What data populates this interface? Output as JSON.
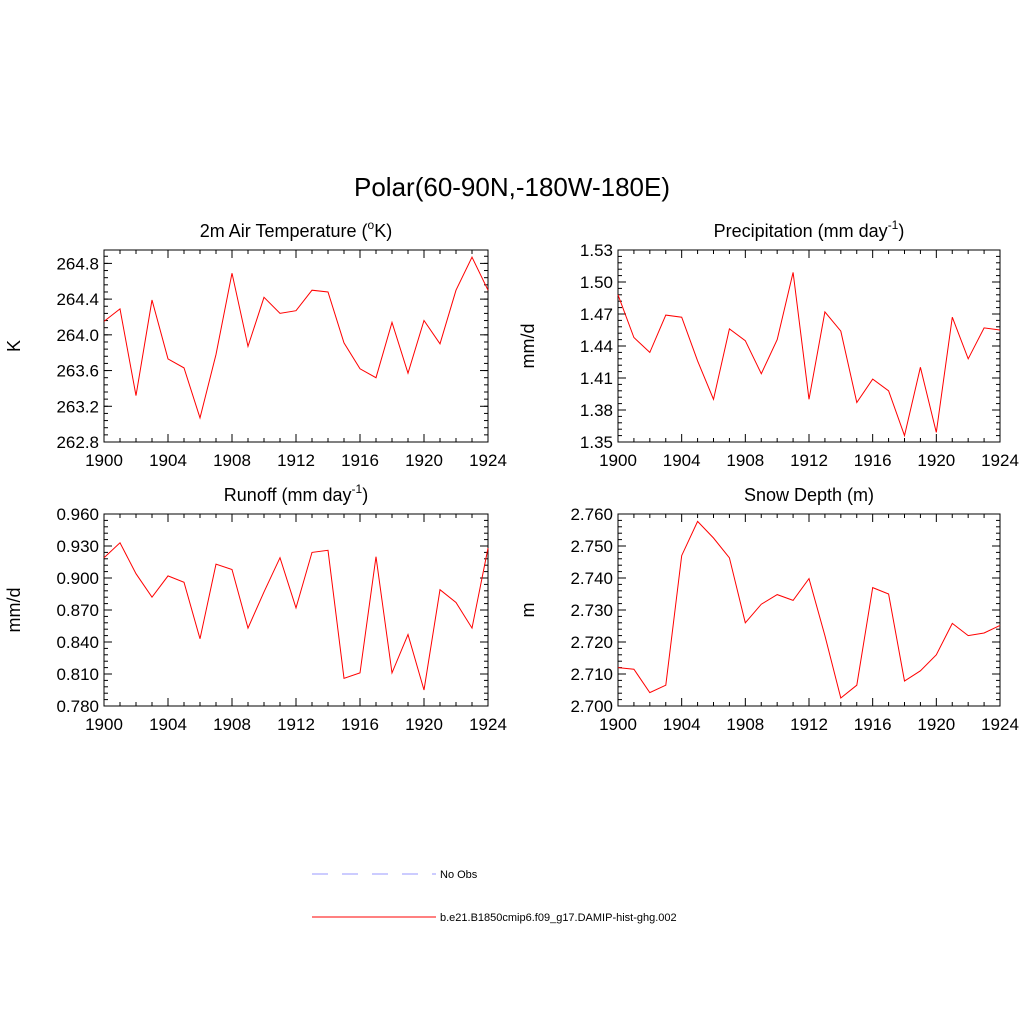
{
  "title": "Polar(60-90N,-180W-180E)",
  "colors": {
    "model_line": "#ff0000",
    "obs_line": "#9999ff",
    "axis": "#000000"
  },
  "legend": {
    "items": [
      {
        "label": "No Obs",
        "style": "dashed",
        "color": "#9999ff"
      },
      {
        "label": "b.e21.B1850cmip6.f09_g17.DAMIP-hist-ghg.002",
        "style": "solid",
        "color": "#ff0000"
      }
    ]
  },
  "chart_data": [
    {
      "type": "line",
      "title": "2m Air Temperature",
      "title_unit_prefix": " (",
      "title_unit_sup": "o",
      "title_unit_suffix": "K)",
      "xlabel": "",
      "ylabel": "K",
      "xlim": [
        1900,
        1924
      ],
      "ylim": [
        262.8,
        264.95
      ],
      "xticks": [
        "1900",
        "1904",
        "1908",
        "1912",
        "1916",
        "1920",
        "1924"
      ],
      "yticks": [
        "262.8",
        "263.2",
        "263.6",
        "264.0",
        "264.4",
        "264.8"
      ],
      "x": [
        1900,
        1901,
        1902,
        1903,
        1904,
        1905,
        1906,
        1907,
        1908,
        1909,
        1910,
        1911,
        1912,
        1913,
        1914,
        1915,
        1916,
        1917,
        1918,
        1919,
        1920,
        1921,
        1922,
        1923,
        1924
      ],
      "series": [
        {
          "name": "b.e21.B1850cmip6.f09_g17.DAMIP-hist-ghg.002",
          "values": [
            264.15,
            264.29,
            263.32,
            264.39,
            263.73,
            263.63,
            263.07,
            263.78,
            264.69,
            263.87,
            264.42,
            264.24,
            264.27,
            264.5,
            264.48,
            263.91,
            263.62,
            263.52,
            264.14,
            263.57,
            264.16,
            263.9,
            264.5,
            264.87,
            264.5
          ]
        }
      ]
    },
    {
      "type": "line",
      "title": "Precipitation (mm day",
      "title_sup": "-1",
      "title_suffix": ")",
      "xlabel": "",
      "ylabel": "mm/d",
      "xlim": [
        1900,
        1924
      ],
      "ylim": [
        1.35,
        1.53
      ],
      "xticks": [
        "1900",
        "1904",
        "1908",
        "1912",
        "1916",
        "1920",
        "1924"
      ],
      "yticks": [
        "1.35",
        "1.38",
        "1.41",
        "1.44",
        "1.47",
        "1.50",
        "1.53"
      ],
      "x": [
        1900,
        1901,
        1902,
        1903,
        1904,
        1905,
        1906,
        1907,
        1908,
        1909,
        1910,
        1911,
        1912,
        1913,
        1914,
        1915,
        1916,
        1917,
        1918,
        1919,
        1920,
        1921,
        1922,
        1923,
        1924
      ],
      "series": [
        {
          "name": "b.e21.B1850cmip6.f09_g17.DAMIP-hist-ghg.002",
          "values": [
            1.488,
            1.448,
            1.434,
            1.469,
            1.467,
            1.426,
            1.39,
            1.456,
            1.445,
            1.414,
            1.446,
            1.509,
            1.39,
            1.472,
            1.454,
            1.387,
            1.409,
            1.398,
            1.356,
            1.42,
            1.359,
            1.467,
            1.428,
            1.457,
            1.455
          ]
        }
      ]
    },
    {
      "type": "line",
      "title": "Runoff (mm day",
      "title_sup": "-1",
      "title_suffix": ")",
      "xlabel": "",
      "ylabel": "mm/d",
      "xlim": [
        1900,
        1924
      ],
      "ylim": [
        0.78,
        0.96
      ],
      "xticks": [
        "1900",
        "1904",
        "1908",
        "1912",
        "1916",
        "1920",
        "1924"
      ],
      "yticks": [
        "0.780",
        "0.810",
        "0.840",
        "0.870",
        "0.900",
        "0.930",
        "0.960"
      ],
      "x": [
        1900,
        1901,
        1902,
        1903,
        1904,
        1905,
        1906,
        1907,
        1908,
        1909,
        1910,
        1911,
        1912,
        1913,
        1914,
        1915,
        1916,
        1917,
        1918,
        1919,
        1920,
        1921,
        1922,
        1923,
        1924
      ],
      "series": [
        {
          "name": "b.e21.B1850cmip6.f09_g17.DAMIP-hist-ghg.002",
          "values": [
            0.919,
            0.933,
            0.904,
            0.882,
            0.902,
            0.896,
            0.843,
            0.913,
            0.908,
            0.853,
            0.887,
            0.919,
            0.872,
            0.924,
            0.926,
            0.806,
            0.811,
            0.92,
            0.811,
            0.847,
            0.795,
            0.889,
            0.877,
            0.853,
            0.928
          ]
        }
      ]
    },
    {
      "type": "line",
      "title": "Snow Depth (m)",
      "xlabel": "",
      "ylabel": "m",
      "xlim": [
        1900,
        1924
      ],
      "ylim": [
        2.7,
        2.76
      ],
      "xticks": [
        "1900",
        "1904",
        "1908",
        "1912",
        "1916",
        "1920",
        "1924"
      ],
      "yticks": [
        "2.700",
        "2.710",
        "2.720",
        "2.730",
        "2.740",
        "2.750",
        "2.760"
      ],
      "x": [
        1900,
        1901,
        1902,
        1903,
        1904,
        1905,
        1906,
        1907,
        1908,
        1909,
        1910,
        1911,
        1912,
        1913,
        1914,
        1915,
        1916,
        1917,
        1918,
        1919,
        1920,
        1921,
        1922,
        1923,
        1924
      ],
      "series": [
        {
          "name": "b.e21.B1850cmip6.f09_g17.DAMIP-hist-ghg.002",
          "values": [
            2.712,
            2.7115,
            2.7042,
            2.7065,
            2.747,
            2.7577,
            2.7525,
            2.7463,
            2.726,
            2.7318,
            2.7348,
            2.733,
            2.7398,
            2.722,
            2.7025,
            2.7065,
            2.737,
            2.735,
            2.7078,
            2.711,
            2.716,
            2.7258,
            2.722,
            2.7228,
            2.7252
          ]
        }
      ]
    }
  ]
}
